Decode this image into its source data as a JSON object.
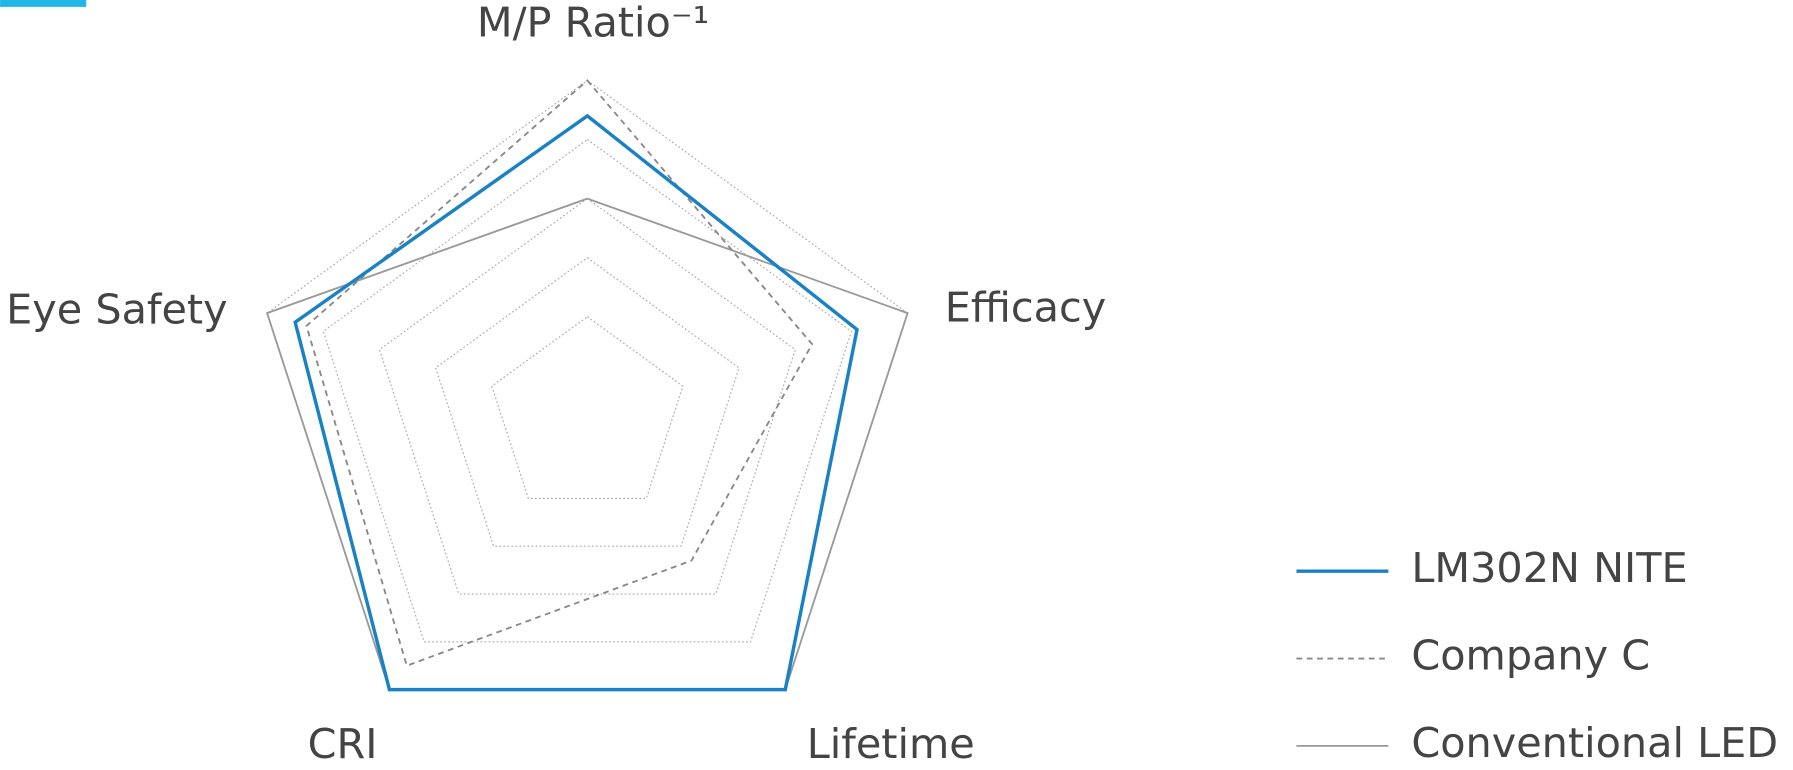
{
  "chart_data": {
    "type": "radar",
    "categories": [
      "M/P Ratio⁻¹",
      "Efficacy",
      "Lifetime",
      "CRI",
      "Eye Safety"
    ],
    "rlim": [
      -0.7,
      5
    ],
    "rticks": [
      1,
      2,
      3,
      4,
      5
    ],
    "grid": true,
    "legend": "lower right",
    "series": [
      {
        "name": "LM302N NITE",
        "color": "#1a82c4",
        "dash": "solid",
        "values": [
          4.4,
          4.1,
          5,
          5,
          4.5
        ]
      },
      {
        "name": "Company C",
        "color": "#888888",
        "dash": "dashed",
        "values": [
          5,
          3.3,
          2.3,
          4.5,
          4.3
        ]
      },
      {
        "name": "Conventional LED",
        "color": "#999999",
        "dash": "solid",
        "values": [
          3,
          5,
          5,
          5,
          5
        ]
      }
    ]
  }
}
